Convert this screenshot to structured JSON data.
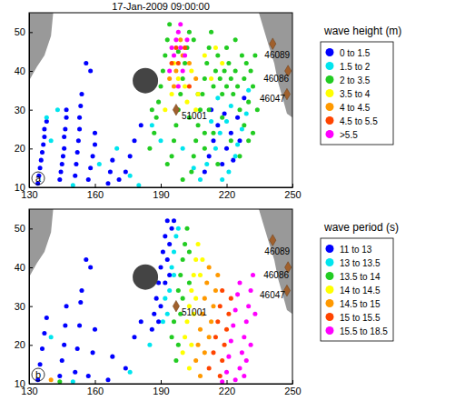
{
  "chart_data": [
    {
      "type": "scatter",
      "title": "17-Jan-2009 09:00:00",
      "label": "a",
      "xlim": [
        130,
        250
      ],
      "ylim": [
        10,
        55
      ],
      "xticks": [
        130,
        160,
        190,
        220,
        250
      ],
      "yticks": [
        10,
        20,
        30,
        40,
        50
      ],
      "grid": false,
      "legend": "right",
      "legend_title": "wave height (m)",
      "marker": "circle",
      "series": [
        {
          "name": "0 to 1.5",
          "color": "#0000ff",
          "x": [
            134,
            134.5,
            135,
            135.5,
            136,
            136.5,
            137,
            137,
            138,
            144,
            144.5,
            145,
            145.5,
            146,
            146,
            146.5,
            147,
            147,
            151,
            151.5,
            152,
            152.5,
            153,
            153,
            153.5,
            154,
            157,
            158,
            159,
            160,
            160,
            166,
            167,
            168,
            171,
            174,
            176,
            178,
            181,
            212,
            214,
            216,
            213,
            218,
            220,
            222,
            225,
            210,
            219,
            223,
            228,
            226,
            156,
            158
          ],
          "values": [
            11,
            13,
            15,
            17,
            19,
            21,
            23,
            25,
            27,
            12,
            14,
            16,
            18,
            20,
            23,
            25,
            28,
            30,
            13,
            16,
            19,
            22,
            25,
            28,
            31,
            34,
            12,
            15,
            18,
            21,
            24,
            11,
            14,
            17,
            12,
            14,
            18,
            22,
            26,
            18,
            22,
            26,
            30,
            16,
            20,
            24,
            28,
            14,
            29,
            17,
            33,
            22,
            42,
            40
          ]
        },
        {
          "name": "1.5 to 2",
          "color": "#00e5ee",
          "x": [
            138,
            140,
            143,
            150,
            162,
            170,
            176,
            180,
            208,
            211,
            215,
            217,
            220,
            222,
            224,
            227,
            229,
            216,
            213,
            218,
            221,
            225,
            230,
            186,
            190,
            200,
            205
          ],
          "values": [
            28,
            22,
            30,
            10.5,
            16,
            20,
            13,
            10.5,
            12,
            16,
            20,
            24,
            27,
            31,
            18,
            25,
            29,
            33,
            27,
            12,
            14,
            21,
            35,
            26,
            22,
            20,
            15
          ]
        },
        {
          "name": "2 to 3.5",
          "color": "#22cc22",
          "x": [
            185,
            187,
            188,
            189,
            190,
            191,
            192,
            193,
            194,
            186,
            195,
            196,
            197,
            198,
            199,
            200,
            201,
            202,
            203,
            204,
            205,
            206,
            207,
            208,
            209,
            210,
            211,
            212,
            213,
            214,
            215,
            216,
            217,
            218,
            219,
            220,
            221,
            222,
            223,
            224,
            225,
            226,
            227,
            228,
            229,
            230,
            231,
            232,
            233,
            234,
            200,
            210,
            203,
            193,
            198,
            205,
            212,
            220,
            224,
            228,
            232,
            210,
            214,
            218,
            222,
            226,
            230,
            216,
            207
          ],
          "values": [
            20,
            24,
            28,
            32,
            36,
            40,
            44,
            48,
            52,
            30,
            18,
            22,
            26,
            30,
            34,
            38,
            42,
            46,
            50,
            14,
            18,
            22,
            26,
            30,
            34,
            38,
            42,
            46,
            50,
            36,
            40,
            44,
            38,
            34,
            40,
            36,
            42,
            38,
            34,
            40,
            36,
            30,
            44,
            38,
            42,
            32,
            40,
            36,
            44,
            30,
            12,
            24,
            28,
            16,
            45,
            48,
            30,
            46,
            48,
            26,
            24,
            20,
            24,
            28,
            22,
            18,
            22,
            16,
            34
          ]
        },
        {
          "name": "3.5 to 4",
          "color": "#ffff00",
          "x": [
            192,
            195,
            198,
            201,
            204,
            207,
            210,
            213,
            196,
            202,
            215,
            218,
            206
          ],
          "values": [
            30,
            34,
            38,
            36,
            40,
            34,
            44,
            38,
            42,
            32,
            46,
            42,
            30
          ]
        },
        {
          "name": "4 to 4.5",
          "color": "#ff9900",
          "x": [
            194,
            197,
            200,
            203,
            206,
            199,
            196
          ],
          "values": [
            38,
            40,
            44,
            42,
            38,
            48,
            36
          ]
        },
        {
          "name": "4.5 to 5.5",
          "color": "#ff4400",
          "x": [
            195,
            198,
            201,
            197,
            203
          ],
          "values": [
            42,
            42,
            46,
            46,
            36
          ]
        },
        {
          "name": ">5.5",
          "color": "#ff00ff",
          "x": [
            196,
            197,
            198,
            199,
            200,
            201,
            195,
            198,
            202,
            194,
            199
          ],
          "values": [
            44,
            48,
            50,
            46,
            40,
            44,
            46,
            36,
            48,
            40,
            52
          ]
        }
      ],
      "stations": [
        {
          "name": "46089",
          "x": 241,
          "y": 47
        },
        {
          "name": "46086",
          "x": 248,
          "y": 40
        },
        {
          "name": "46047",
          "x": 247.5,
          "y": 34
        },
        {
          "name": "51001",
          "x": 197,
          "y": 30
        }
      ],
      "circle": {
        "x": 183,
        "y": 37.5
      },
      "land": [
        [
          [
            130,
            55
          ],
          [
            141,
            55
          ],
          [
            140,
            49
          ],
          [
            137,
            44
          ],
          [
            133.5,
            41
          ],
          [
            130,
            37.5
          ]
        ],
        [
          [
            234.7,
            55
          ],
          [
            250,
            55
          ],
          [
            250,
            28
          ],
          [
            247.5,
            29
          ],
          [
            245.8,
            32.5
          ],
          [
            243.4,
            37.2
          ],
          [
            241.7,
            42
          ],
          [
            239.2,
            46.5
          ],
          [
            236.7,
            51.2
          ]
        ]
      ]
    },
    {
      "type": "scatter",
      "label": "b",
      "xlim": [
        130,
        250
      ],
      "ylim": [
        10,
        55
      ],
      "xticks": [
        130,
        160,
        190,
        220,
        250
      ],
      "yticks": [
        10,
        20,
        30,
        40,
        50
      ],
      "grid": false,
      "legend": "right",
      "legend_title": "wave period (s)",
      "marker": "circle",
      "series": [
        {
          "name": "11 to 13",
          "color": "#0000ff",
          "x": [
            134,
            135,
            136,
            137,
            138,
            144,
            145,
            146,
            146.5,
            147,
            151,
            152,
            153,
            153.5,
            154,
            157,
            159,
            160,
            166,
            168,
            174,
            178,
            181,
            156,
            158,
            186,
            187,
            188,
            189,
            190,
            191,
            192,
            193,
            190,
            192,
            193,
            194,
            195,
            196,
            194,
            189
          ],
          "values": [
            11,
            15,
            19,
            23,
            27,
            12,
            16,
            20,
            25,
            30,
            13,
            19,
            25,
            31,
            34,
            12,
            18,
            24,
            11,
            17,
            14,
            22,
            26,
            42,
            40,
            24,
            28,
            32,
            36,
            40,
            44,
            48,
            52,
            30,
            36,
            42,
            46,
            50,
            52,
            38,
            26
          ]
        },
        {
          "name": "13 to 13.5",
          "color": "#00e5ee",
          "x": [
            140,
            150,
            176,
            185,
            191,
            192,
            194,
            195,
            196,
            197,
            198,
            193,
            196
          ],
          "values": [
            22,
            10.5,
            13,
            20,
            26,
            32,
            34,
            40,
            44,
            48,
            50,
            28,
            38
          ]
        },
        {
          "name": "13.5 to 14",
          "color": "#22cc22",
          "x": [
            195,
            196,
            197,
            198,
            199,
            200,
            201,
            202,
            199,
            200,
            198,
            203,
            203,
            197,
            144
          ],
          "values": [
            22,
            26,
            30,
            34,
            38,
            42,
            46,
            50,
            28,
            32,
            20,
            36,
            44,
            16,
            10.5
          ]
        },
        {
          "name": "14 to 14.5",
          "color": "#ffff00",
          "x": [
            200,
            201,
            202,
            203,
            204,
            205,
            206,
            207,
            204,
            205,
            206,
            208,
            209,
            203
          ],
          "values": [
            18,
            22,
            26,
            30,
            34,
            38,
            42,
            46,
            20,
            28,
            32,
            38,
            42,
            14
          ]
        },
        {
          "name": "14.5 to 15",
          "color": "#ff9900",
          "x": [
            206,
            207,
            208,
            209,
            210,
            211,
            212,
            210,
            212,
            213,
            214,
            215,
            216,
            208,
            140
          ],
          "values": [
            16,
            20,
            24,
            28,
            32,
            36,
            40,
            18,
            22,
            26,
            30,
            34,
            38,
            12,
            11
          ]
        },
        {
          "name": "15 to 15.5",
          "color": "#ff4400",
          "x": [
            212,
            214,
            215,
            216,
            217,
            218,
            219,
            220,
            217,
            221,
            222,
            218
          ],
          "values": [
            14,
            18,
            22,
            26,
            30,
            34,
            20,
            24,
            12,
            28,
            32,
            16
          ]
        },
        {
          "name": "15.5 to 18.5",
          "color": "#ff00ff",
          "x": [
            218,
            220,
            221,
            222,
            223,
            224,
            225,
            226,
            227,
            228,
            229,
            230,
            231,
            224,
            226,
            232,
            228,
            233,
            229,
            231
          ],
          "values": [
            10.5,
            13,
            17,
            21,
            25,
            29,
            33,
            14,
            18,
            22,
            26,
            30,
            34,
            11,
            36,
            38,
            12,
            28,
            16,
            20
          ]
        }
      ],
      "stations": [
        {
          "name": "46089",
          "x": 241,
          "y": 47
        },
        {
          "name": "46086",
          "x": 248,
          "y": 40
        },
        {
          "name": "46047",
          "x": 247.5,
          "y": 34
        },
        {
          "name": "51001",
          "x": 197,
          "y": 30
        }
      ],
      "circle": {
        "x": 183,
        "y": 37.5
      },
      "land": [
        [
          [
            130,
            55
          ],
          [
            141,
            55
          ],
          [
            140,
            49
          ],
          [
            137,
            44
          ],
          [
            133.5,
            41
          ],
          [
            130,
            37.5
          ]
        ],
        [
          [
            234.7,
            55
          ],
          [
            250,
            55
          ],
          [
            250,
            28
          ],
          [
            247.5,
            29
          ],
          [
            245.8,
            32.5
          ],
          [
            243.4,
            37.2
          ],
          [
            241.7,
            42
          ],
          [
            239.2,
            46.5
          ],
          [
            236.7,
            51.2
          ]
        ]
      ]
    }
  ]
}
